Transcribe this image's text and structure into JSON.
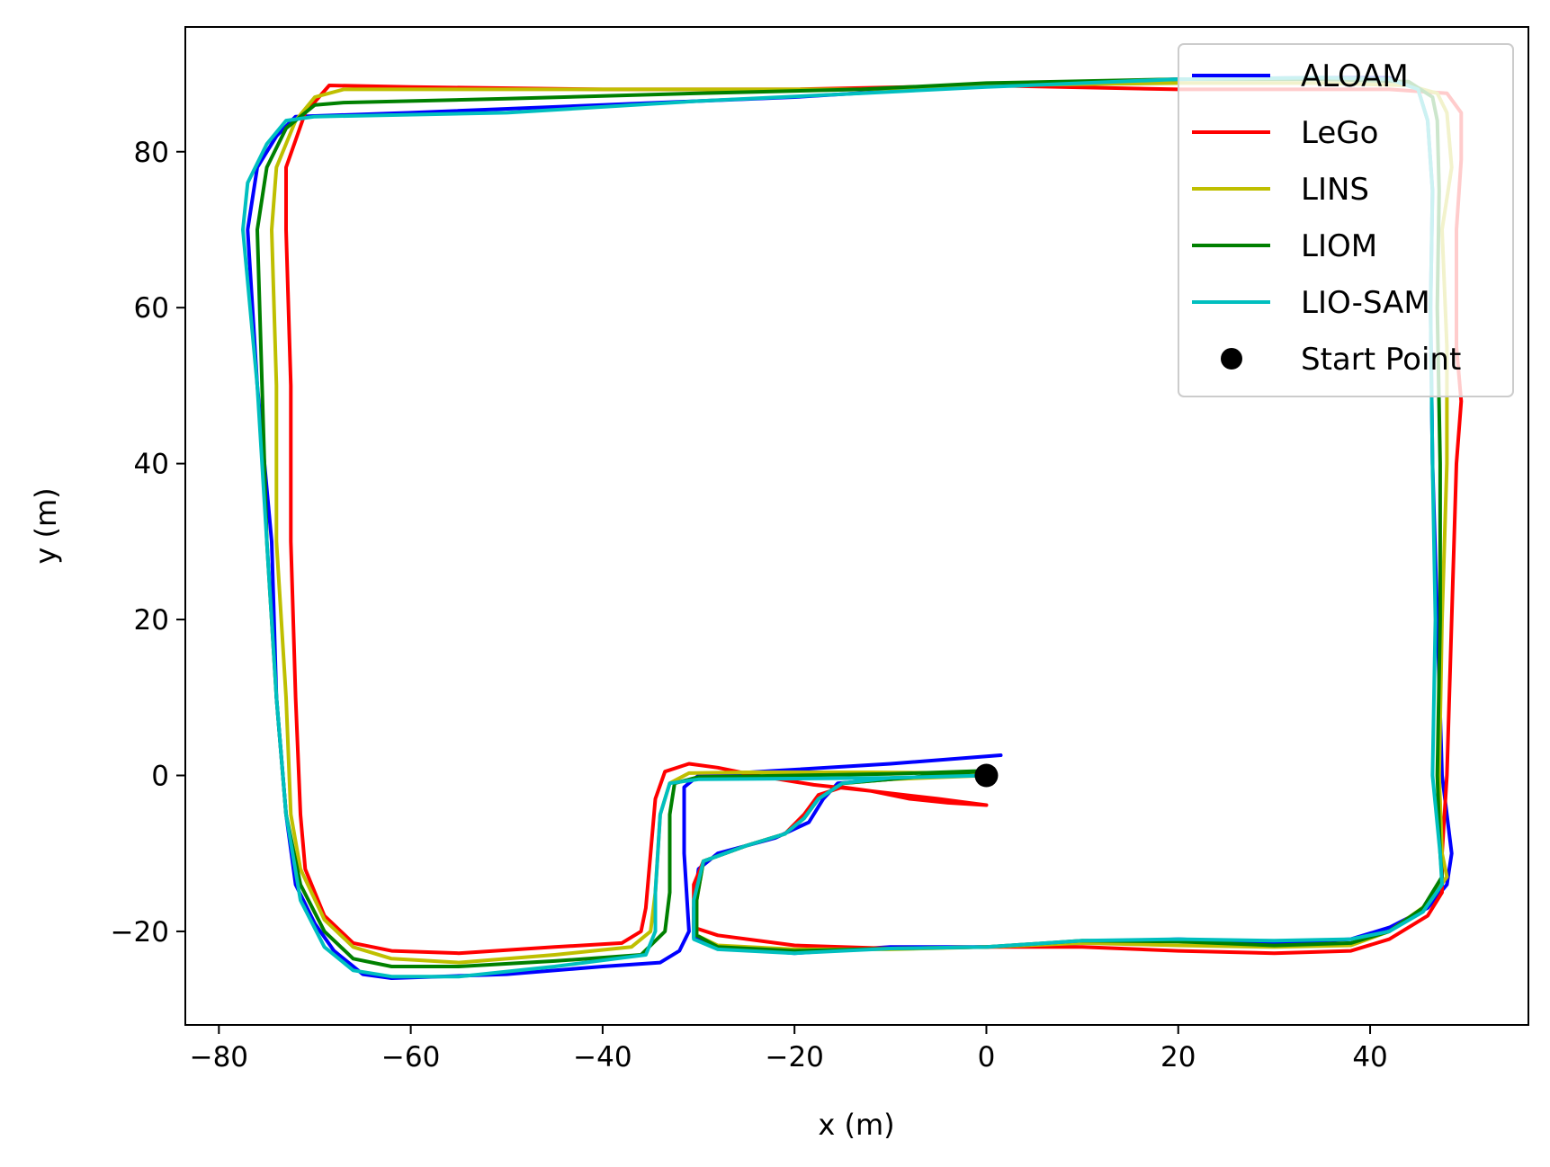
{
  "chart_data": {
    "type": "line",
    "xlabel": "x (m)",
    "ylabel": "y (m)",
    "xlim": [
      -83.5,
      56.5
    ],
    "ylim": [
      -32,
      96
    ],
    "xticks": [
      -80,
      -60,
      -40,
      -20,
      0,
      20,
      40
    ],
    "yticks": [
      -20,
      0,
      20,
      40,
      60,
      80
    ],
    "xtick_labels": [
      "−80",
      "−60",
      "−40",
      "−20",
      "0",
      "20",
      "40"
    ],
    "ytick_labels": [
      "−20",
      "0",
      "20",
      "40",
      "60",
      "80"
    ],
    "grid": false,
    "legend_position": "top-right",
    "series": [
      {
        "name": "ALOAM",
        "color": "#0000ff",
        "points": [
          [
            1.5,
            2.6
          ],
          [
            -10,
            1.5
          ],
          [
            -22,
            0.6
          ],
          [
            -30,
            0
          ],
          [
            -31.5,
            -1.5
          ],
          [
            -31.5,
            -10
          ],
          [
            -31,
            -20
          ],
          [
            -32,
            -22.5
          ],
          [
            -34,
            -24
          ],
          [
            -40,
            -24.5
          ],
          [
            -50,
            -25.5
          ],
          [
            -62,
            -26
          ],
          [
            -65,
            -25.5
          ],
          [
            -68,
            -22.5
          ],
          [
            -70,
            -19
          ],
          [
            -72,
            -14
          ],
          [
            -73,
            -5
          ],
          [
            -74,
            10
          ],
          [
            -74.5,
            30
          ],
          [
            -76,
            50
          ],
          [
            -77,
            70
          ],
          [
            -76,
            78
          ],
          [
            -74,
            82
          ],
          [
            -72,
            84.5
          ],
          [
            -60,
            85
          ],
          [
            -40,
            86
          ],
          [
            -20,
            87
          ],
          [
            0,
            88.5
          ],
          [
            20,
            89.3
          ],
          [
            35,
            89.5
          ],
          [
            42,
            89.5
          ],
          [
            45,
            88
          ],
          [
            46,
            84
          ],
          [
            46.5,
            75
          ],
          [
            46.3,
            60
          ],
          [
            46.5,
            40
          ],
          [
            47.5,
            0
          ],
          [
            48.5,
            -10
          ],
          [
            48,
            -14
          ],
          [
            46,
            -17
          ],
          [
            42,
            -19.5
          ],
          [
            38,
            -21
          ],
          [
            30,
            -21.5
          ],
          [
            20,
            -21
          ],
          [
            10,
            -21.5
          ],
          [
            0,
            -22
          ],
          [
            -10,
            -22
          ],
          [
            -20,
            -22.8
          ],
          [
            -28,
            -22
          ],
          [
            -30.5,
            -20.8
          ],
          [
            -30.5,
            -17
          ],
          [
            -30,
            -12
          ],
          [
            -28,
            -10
          ],
          [
            -22,
            -8
          ],
          [
            -18.5,
            -6
          ],
          [
            -17,
            -3
          ],
          [
            -15.5,
            -1
          ],
          [
            -10,
            -0.5
          ],
          [
            0,
            0.5
          ]
        ]
      },
      {
        "name": "LeGo",
        "color": "#ff0000",
        "points": [
          [
            0,
            -3.8
          ],
          [
            -5,
            -3
          ],
          [
            -12,
            -2
          ],
          [
            -18,
            -1.2
          ],
          [
            -24,
            0
          ],
          [
            -28,
            1
          ],
          [
            -31,
            1.5
          ],
          [
            -33.5,
            0.5
          ],
          [
            -34.5,
            -3
          ],
          [
            -35,
            -10
          ],
          [
            -35.5,
            -17
          ],
          [
            -36,
            -20
          ],
          [
            -38,
            -21.5
          ],
          [
            -45,
            -22
          ],
          [
            -55,
            -22.8
          ],
          [
            -62,
            -22.5
          ],
          [
            -66,
            -21.5
          ],
          [
            -69,
            -18
          ],
          [
            -71,
            -12
          ],
          [
            -71.5,
            -5
          ],
          [
            -72,
            10
          ],
          [
            -72.5,
            30
          ],
          [
            -72.5,
            50
          ],
          [
            -73,
            70
          ],
          [
            -73,
            78
          ],
          [
            -71,
            85
          ],
          [
            -68.5,
            88.5
          ],
          [
            -60,
            88.3
          ],
          [
            -40,
            88
          ],
          [
            -20,
            88
          ],
          [
            0,
            88.5
          ],
          [
            20,
            88
          ],
          [
            35,
            88
          ],
          [
            42,
            88
          ],
          [
            48,
            87.5
          ],
          [
            49.5,
            85
          ],
          [
            49.5,
            79
          ],
          [
            49,
            70
          ],
          [
            49,
            55
          ],
          [
            49.5,
            48
          ],
          [
            49,
            40
          ],
          [
            48.5,
            20
          ],
          [
            48,
            0
          ],
          [
            47.5,
            -10
          ],
          [
            47.5,
            -15
          ],
          [
            46,
            -18
          ],
          [
            42,
            -21
          ],
          [
            38,
            -22.5
          ],
          [
            30,
            -22.8
          ],
          [
            20,
            -22.5
          ],
          [
            10,
            -22
          ],
          [
            0,
            -22
          ],
          [
            -10,
            -22.2
          ],
          [
            -20,
            -21.8
          ],
          [
            -28,
            -20.5
          ],
          [
            -30.5,
            -19.5
          ],
          [
            -30.5,
            -14
          ],
          [
            -29.5,
            -11
          ],
          [
            -25,
            -9
          ],
          [
            -21,
            -7.5
          ],
          [
            -19,
            -5
          ],
          [
            -17.5,
            -2.5
          ],
          [
            -15,
            -1.5
          ],
          [
            -12,
            -2
          ],
          [
            -8,
            -3
          ],
          [
            -4,
            -3.5
          ],
          [
            0,
            -3.8
          ]
        ]
      },
      {
        "name": "LINS",
        "color": "#bfbf00",
        "points": [
          [
            0,
            0.3
          ],
          [
            -12,
            0.4
          ],
          [
            -25,
            0.4
          ],
          [
            -31,
            0.3
          ],
          [
            -33,
            -1
          ],
          [
            -34,
            -5
          ],
          [
            -34.5,
            -15
          ],
          [
            -35,
            -20
          ],
          [
            -37,
            -22
          ],
          [
            -45,
            -23
          ],
          [
            -55,
            -24
          ],
          [
            -62,
            -23.5
          ],
          [
            -66,
            -22
          ],
          [
            -69,
            -18.5
          ],
          [
            -71.5,
            -12
          ],
          [
            -72.5,
            -5
          ],
          [
            -73,
            10
          ],
          [
            -74,
            30
          ],
          [
            -74,
            50
          ],
          [
            -74.5,
            70
          ],
          [
            -74,
            78
          ],
          [
            -72,
            84
          ],
          [
            -70,
            87
          ],
          [
            -67,
            88
          ],
          [
            -50,
            88
          ],
          [
            -30,
            88
          ],
          [
            -13,
            88
          ],
          [
            0,
            88.5
          ],
          [
            20,
            88.8
          ],
          [
            35,
            88.8
          ],
          [
            44,
            88.5
          ],
          [
            47,
            87.5
          ],
          [
            48,
            85
          ],
          [
            48.5,
            78
          ],
          [
            47.5,
            70
          ],
          [
            48,
            55
          ],
          [
            48,
            40
          ],
          [
            47.5,
            20
          ],
          [
            47.2,
            0
          ],
          [
            47.5,
            -10
          ],
          [
            48,
            -13
          ],
          [
            46,
            -16.5
          ],
          [
            42,
            -20
          ],
          [
            38,
            -21.8
          ],
          [
            30,
            -22
          ],
          [
            20,
            -21.8
          ],
          [
            10,
            -21.5
          ],
          [
            0,
            -22
          ],
          [
            -10,
            -22.3
          ],
          [
            -20,
            -22.3
          ],
          [
            -28,
            -21.8
          ],
          [
            -30.2,
            -20.5
          ],
          [
            -30.2,
            -16
          ],
          [
            -29.5,
            -11
          ],
          [
            -25,
            -9
          ],
          [
            -21,
            -7.5
          ],
          [
            -19,
            -5.5
          ],
          [
            -17.5,
            -3
          ],
          [
            -15,
            -1
          ],
          [
            -10,
            -0.5
          ],
          [
            0,
            0
          ]
        ]
      },
      {
        "name": "LIOM",
        "color": "#008000",
        "points": [
          [
            0,
            0.6
          ],
          [
            -10,
            0.2
          ],
          [
            -20,
            0
          ],
          [
            -30,
            -0.2
          ],
          [
            -32.5,
            -1
          ],
          [
            -33,
            -5
          ],
          [
            -33,
            -15
          ],
          [
            -33.5,
            -20
          ],
          [
            -36,
            -23
          ],
          [
            -45,
            -23.8
          ],
          [
            -55,
            -24.5
          ],
          [
            -62,
            -24.5
          ],
          [
            -66,
            -23.5
          ],
          [
            -69,
            -20
          ],
          [
            -71.5,
            -14
          ],
          [
            -73,
            -5
          ],
          [
            -74,
            10
          ],
          [
            -75,
            30
          ],
          [
            -75.5,
            50
          ],
          [
            -76,
            70
          ],
          [
            -75,
            78
          ],
          [
            -73,
            83
          ],
          [
            -70,
            86
          ],
          [
            -67,
            86.3
          ],
          [
            -50,
            86.8
          ],
          [
            -30,
            87.5
          ],
          [
            -13,
            88
          ],
          [
            0,
            88.8
          ],
          [
            20,
            89.3
          ],
          [
            35,
            89.3
          ],
          [
            44,
            89
          ],
          [
            46.5,
            87
          ],
          [
            47,
            84
          ],
          [
            47.2,
            75
          ],
          [
            47,
            60
          ],
          [
            47.3,
            40
          ],
          [
            47.3,
            20
          ],
          [
            47,
            0
          ],
          [
            47.3,
            -10
          ],
          [
            47.5,
            -13
          ],
          [
            45.5,
            -17
          ],
          [
            42,
            -20
          ],
          [
            38,
            -21.5
          ],
          [
            30,
            -21.8
          ],
          [
            20,
            -21.3
          ],
          [
            10,
            -21.2
          ],
          [
            0,
            -22
          ],
          [
            -10,
            -22.2
          ],
          [
            -20,
            -22.5
          ],
          [
            -28,
            -22
          ],
          [
            -30.2,
            -20.5
          ],
          [
            -30.2,
            -16
          ],
          [
            -29.5,
            -11
          ],
          [
            -25,
            -9
          ],
          [
            -21,
            -7.5
          ],
          [
            -19,
            -5.5
          ],
          [
            -17.5,
            -3
          ],
          [
            -15,
            -1
          ],
          [
            -10,
            -0.5
          ],
          [
            0,
            0.6
          ]
        ]
      },
      {
        "name": "LIO-SAM",
        "color": "#00bfbf",
        "points": [
          [
            0,
            0
          ],
          [
            -10,
            -0.3
          ],
          [
            -20,
            -0.4
          ],
          [
            -30,
            -0.5
          ],
          [
            -33,
            -1
          ],
          [
            -34,
            -5
          ],
          [
            -34.5,
            -15
          ],
          [
            -34.5,
            -20
          ],
          [
            -35.5,
            -23
          ],
          [
            -45,
            -24.5
          ],
          [
            -55,
            -25.8
          ],
          [
            -62,
            -25.8
          ],
          [
            -66,
            -25
          ],
          [
            -69,
            -22
          ],
          [
            -71.5,
            -16
          ],
          [
            -73,
            -5
          ],
          [
            -74,
            10
          ],
          [
            -75,
            30
          ],
          [
            -76,
            50
          ],
          [
            -77.5,
            70
          ],
          [
            -77,
            76
          ],
          [
            -75,
            81
          ],
          [
            -73,
            84
          ],
          [
            -70,
            84.5
          ],
          [
            -50,
            85
          ],
          [
            -30,
            86.5
          ],
          [
            -13,
            87.5
          ],
          [
            0,
            88.3
          ],
          [
            20,
            89.3
          ],
          [
            35,
            89.5
          ],
          [
            42,
            89.3
          ],
          [
            45,
            88
          ],
          [
            46,
            84
          ],
          [
            46.5,
            75
          ],
          [
            46.3,
            60
          ],
          [
            46.5,
            40
          ],
          [
            46.8,
            20
          ],
          [
            46.5,
            0
          ],
          [
            47.3,
            -10
          ],
          [
            47.5,
            -14
          ],
          [
            45.5,
            -17.5
          ],
          [
            42,
            -20
          ],
          [
            38,
            -21
          ],
          [
            30,
            -21.2
          ],
          [
            20,
            -21
          ],
          [
            10,
            -21.2
          ],
          [
            0,
            -22
          ],
          [
            -10,
            -22.2
          ],
          [
            -20,
            -22.8
          ],
          [
            -28,
            -22.3
          ],
          [
            -30.5,
            -21
          ],
          [
            -30.5,
            -16
          ],
          [
            -29.5,
            -11
          ],
          [
            -25,
            -9
          ],
          [
            -21,
            -7.5
          ],
          [
            -19,
            -5.5
          ],
          [
            -17.5,
            -3
          ],
          [
            -15,
            -1
          ],
          [
            -10,
            -0.3
          ],
          [
            0,
            0
          ]
        ]
      }
    ],
    "start_point": {
      "name": "Start Point",
      "color": "#000000",
      "x": 0,
      "y": 0
    }
  }
}
